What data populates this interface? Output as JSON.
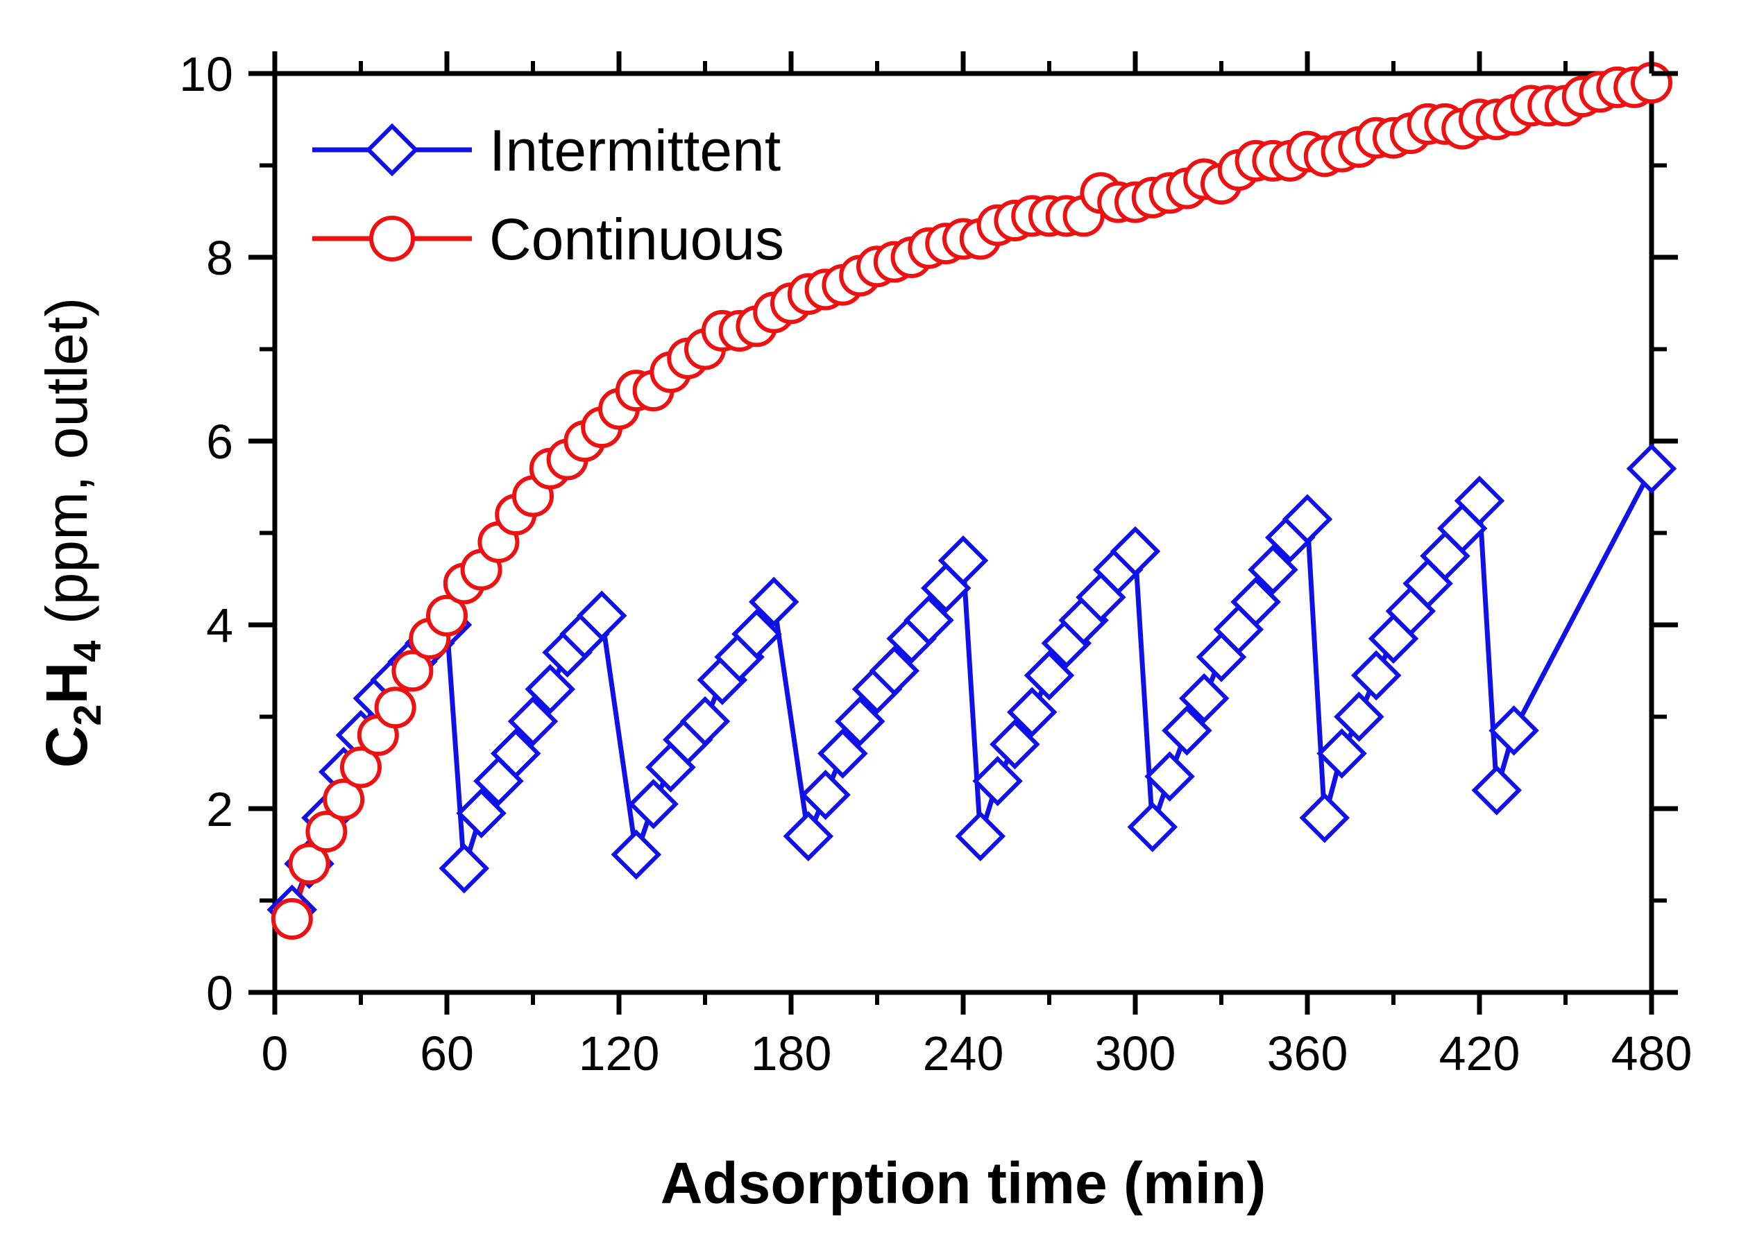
{
  "chart_data": {
    "type": "line",
    "xlabel": "Adsorption time (min)",
    "ylabel": {
      "main": "C",
      "sub1": "2",
      "mid": "H",
      "sub2": "4",
      "rest": " (ppm, outlet)"
    },
    "xlim": [
      0,
      480
    ],
    "ylim": [
      0,
      10
    ],
    "xticks": [
      0,
      60,
      120,
      180,
      240,
      300,
      360,
      420,
      480
    ],
    "yticks": [
      0,
      2,
      4,
      6,
      8,
      10
    ],
    "legend_position": "top-left",
    "series": [
      {
        "name": "Intermittent",
        "color": "#1010e8",
        "marker": "diamond",
        "x": [
          6,
          12,
          18,
          24,
          30,
          36,
          42,
          48,
          54,
          60,
          66,
          72,
          78,
          84,
          90,
          96,
          102,
          108,
          114,
          126,
          132,
          138,
          144,
          150,
          156,
          162,
          168,
          174,
          186,
          192,
          198,
          204,
          210,
          216,
          222,
          228,
          234,
          240,
          246,
          252,
          258,
          264,
          270,
          276,
          282,
          288,
          294,
          300,
          306,
          312,
          318,
          324,
          330,
          336,
          342,
          348,
          354,
          360,
          366,
          372,
          378,
          384,
          390,
          396,
          402,
          408,
          414,
          420,
          426,
          432,
          480
        ],
        "y": [
          0.9,
          1.4,
          1.9,
          2.4,
          2.8,
          3.2,
          3.4,
          3.6,
          3.8,
          4.0,
          1.35,
          1.95,
          2.3,
          2.6,
          2.95,
          3.3,
          3.7,
          3.9,
          4.1,
          1.5,
          2.05,
          2.45,
          2.75,
          2.95,
          3.4,
          3.65,
          3.9,
          4.25,
          1.7,
          2.15,
          2.6,
          2.95,
          3.3,
          3.5,
          3.85,
          4.05,
          4.4,
          4.7,
          1.7,
          2.3,
          2.7,
          3.05,
          3.45,
          3.8,
          4.05,
          4.3,
          4.6,
          4.8,
          1.8,
          2.35,
          2.85,
          3.2,
          3.65,
          3.95,
          4.25,
          4.6,
          4.95,
          5.15,
          1.9,
          2.6,
          3.0,
          3.45,
          3.85,
          4.15,
          4.45,
          4.75,
          5.05,
          5.35,
          2.2,
          2.85,
          5.7
        ]
      },
      {
        "name": "Continuous",
        "color": "#ee1111",
        "marker": "circle",
        "x": [
          6,
          12,
          18,
          24,
          30,
          36,
          42,
          48,
          54,
          60,
          66,
          72,
          78,
          84,
          90,
          96,
          102,
          108,
          114,
          120,
          126,
          132,
          138,
          144,
          150,
          156,
          162,
          168,
          174,
          180,
          186,
          192,
          198,
          204,
          210,
          216,
          222,
          228,
          234,
          240,
          246,
          252,
          258,
          264,
          270,
          276,
          282,
          288,
          294,
          300,
          306,
          312,
          318,
          324,
          330,
          336,
          342,
          348,
          354,
          360,
          366,
          372,
          378,
          384,
          390,
          396,
          402,
          408,
          414,
          420,
          426,
          432,
          438,
          444,
          450,
          456,
          462,
          468,
          474,
          480
        ],
        "y": [
          0.8,
          1.4,
          1.75,
          2.1,
          2.45,
          2.8,
          3.1,
          3.5,
          3.85,
          4.1,
          4.45,
          4.6,
          4.9,
          5.2,
          5.4,
          5.7,
          5.8,
          6.0,
          6.15,
          6.35,
          6.55,
          6.55,
          6.75,
          6.9,
          7.0,
          7.2,
          7.2,
          7.25,
          7.4,
          7.5,
          7.6,
          7.65,
          7.7,
          7.8,
          7.9,
          7.95,
          8.0,
          8.1,
          8.15,
          8.2,
          8.2,
          8.35,
          8.4,
          8.45,
          8.45,
          8.45,
          8.45,
          8.7,
          8.6,
          8.6,
          8.65,
          8.7,
          8.75,
          8.85,
          8.8,
          8.95,
          9.05,
          9.05,
          9.05,
          9.15,
          9.1,
          9.15,
          9.2,
          9.3,
          9.3,
          9.35,
          9.45,
          9.45,
          9.4,
          9.5,
          9.5,
          9.55,
          9.65,
          9.65,
          9.65,
          9.75,
          9.8,
          9.85,
          9.85,
          9.9
        ]
      }
    ]
  }
}
